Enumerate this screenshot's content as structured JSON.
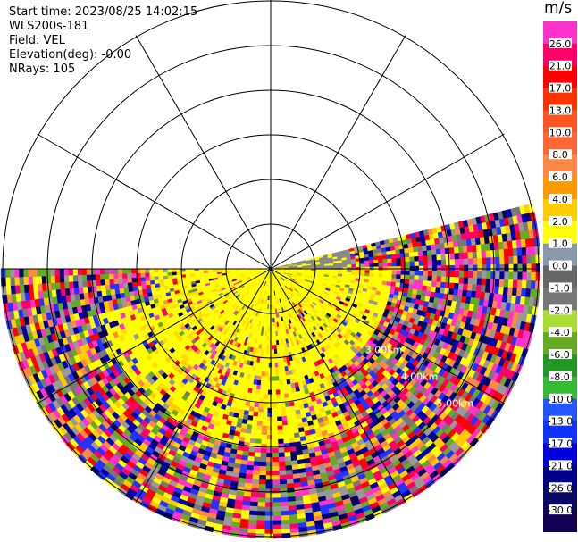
{
  "info": {
    "start_time": "Start time: 2023/08/25 14:02:15",
    "site": "WLS200s-181",
    "field": "Field: VEL",
    "elevation": "Elevation(deg): -0.00",
    "nrays": "NRays: 105"
  },
  "range_rings": {
    "labels": [
      "3.00km",
      "4.00km",
      "5.00km"
    ]
  },
  "colorbar": {
    "unit": "m/s",
    "ticks": [
      "26.0",
      "21.0",
      "17.0",
      "13.0",
      "10.0",
      "8.0",
      "6.0",
      "4.0",
      "2.0",
      "1.0",
      "0.0",
      "-1.0",
      "-2.0",
      "-4.0",
      "-6.0",
      "-8.0",
      "-10.0",
      "-13.0",
      "-17.0",
      "-21.0",
      "-26.0",
      "-30.0"
    ],
    "colors": [
      "#ff33cc",
      "#ff0066",
      "#ff0000",
      "#ff3300",
      "#ff5522",
      "#ff6633",
      "#ff8844",
      "#ff9900",
      "#ffcc00",
      "#ffff00",
      "#8899aa",
      "#666666",
      "#777777",
      "#aadd33",
      "#66aa22",
      "#229922",
      "#33bb33",
      "#2255ff",
      "#1133ff",
      "#0000dd",
      "#000088",
      "#0a0a66",
      "#110055"
    ]
  },
  "radar": {
    "sector_start_deg": -14,
    "sector_end_deg": 180,
    "dominant_near_color": "#ffff00",
    "noise_palette": [
      "#ff33cc",
      "#ff0066",
      "#2233ff",
      "#0000aa",
      "#777777",
      "#ffff00",
      "#ff8844",
      "#66aa22",
      "#000066",
      "#ff0000",
      "#999999",
      "#ffcc00"
    ]
  }
}
